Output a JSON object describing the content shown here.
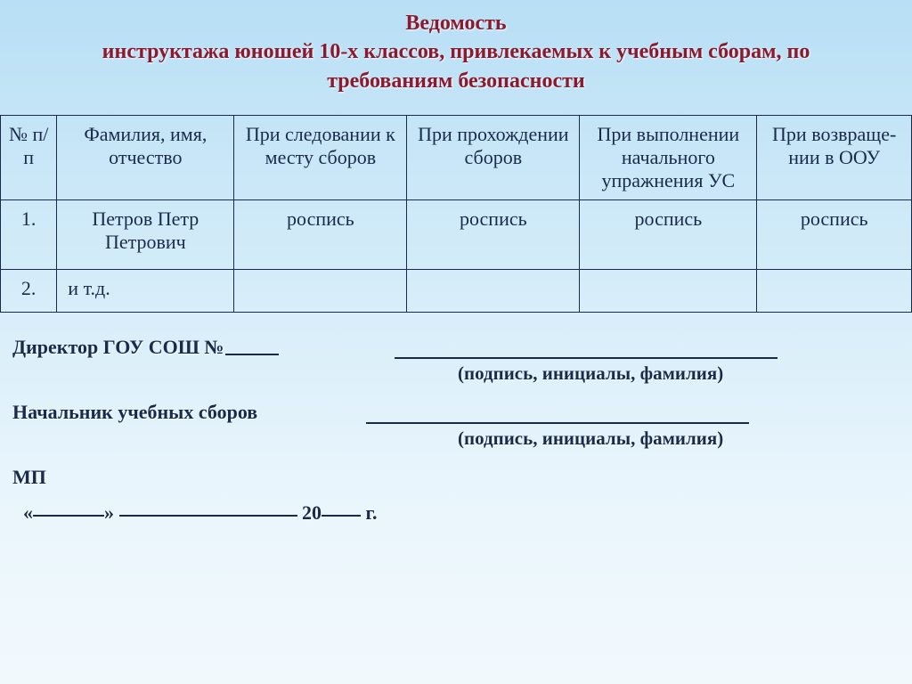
{
  "title": {
    "line1": "Ведомость",
    "line2": "инструктажа юношей 10-х классов, привлекаемых к учебным сборам, по",
    "line3": "требованиям безопасности"
  },
  "table": {
    "headers": {
      "num": "№ п/п",
      "name": "Фамилия, имя, отчество",
      "c3": "При следовании к месту сборов",
      "c4": "При прохождении сборов",
      "c5": "При выполнении начального упражнения УС",
      "c6": "При возвраще-нии в ООУ"
    },
    "rows": [
      {
        "num": "1.",
        "name": "Петров Петр Петрович",
        "c3": "роспись",
        "c4": "роспись",
        "c5": "роспись",
        "c6": "роспись"
      },
      {
        "num": "2.",
        "name": "и т.д.",
        "c3": "",
        "c4": "",
        "c5": "",
        "c6": ""
      }
    ]
  },
  "signatures": {
    "director_label": "Директор ГОУ СОШ №",
    "chief_label": "Начальник учебных сборов",
    "hint": "(подпись, инициалы, фамилия)",
    "mp": "МП",
    "date_open": "«",
    "date_close": "»",
    "date_year_prefix": " 20",
    "date_year_suffix": " г."
  }
}
